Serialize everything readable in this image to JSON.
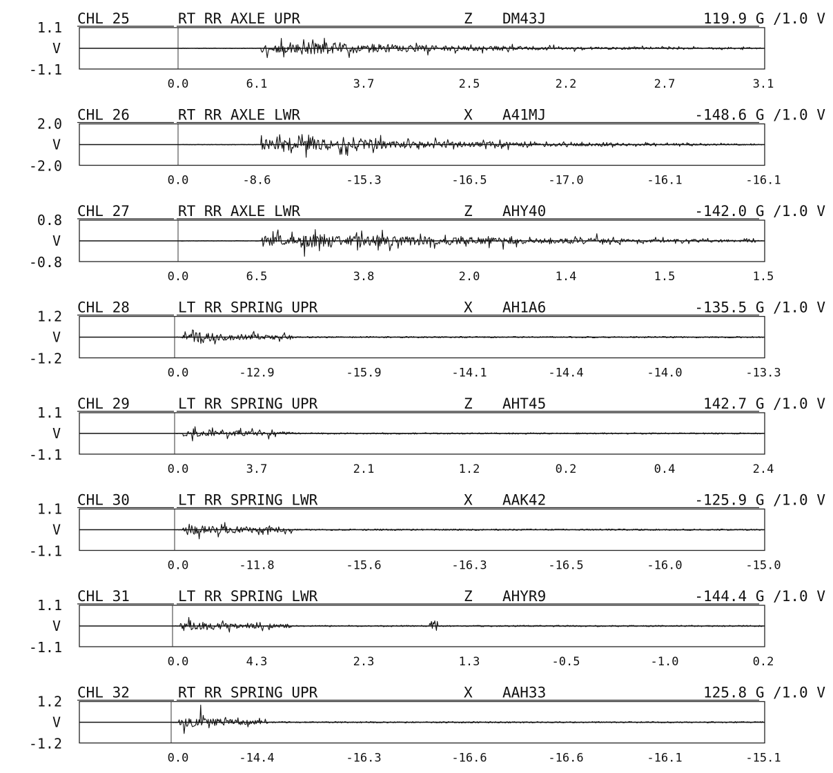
{
  "chart_data": [
    {
      "type": "line",
      "channel": "CHL 25",
      "location": "RT RR AXLE UPR",
      "axis": "Z",
      "sensor_id": "DM43J",
      "scale": "119.9 G /1.0 V",
      "y_top": "1.1",
      "y_unit": "V",
      "y_bottom": "-1.1",
      "tick_labels": [
        "0.0",
        "6.1",
        "3.7",
        "2.5",
        "2.2",
        "2.7",
        "3.1"
      ],
      "ylim": [
        -1.1,
        1.1
      ],
      "start": 0.14,
      "end": 0.99,
      "peak": 0.9,
      "decay": 3,
      "hf": 0.99,
      "seed": 11,
      "blips": [
        [
          0.56,
          0.15
        ]
      ]
    },
    {
      "type": "line",
      "channel": "CHL 26",
      "location": "RT RR AXLE LWR",
      "axis": "X",
      "sensor_id": "A41MJ",
      "scale": "-148.6 G /1.0 V",
      "y_top": "2.0",
      "y_unit": "V",
      "y_bottom": "-2.0",
      "tick_labels": [
        "0.0",
        "-8.6",
        "-15.3",
        "-16.5",
        "-17.0",
        "-16.1",
        "-16.1"
      ],
      "ylim": [
        -2.0,
        2.0
      ],
      "start": 0.14,
      "end": 0.99,
      "peak": 0.9,
      "decay": 3,
      "hf": 0.99,
      "seed": 23,
      "blips": [
        [
          0.56,
          0.1
        ]
      ]
    },
    {
      "type": "line",
      "channel": "CHL 27",
      "location": "RT RR AXLE LWR",
      "axis": "Z",
      "sensor_id": "AHY40",
      "scale": "-142.0 G /1.0 V",
      "y_top": "0.8",
      "y_unit": "V",
      "y_bottom": "-0.8",
      "tick_labels": [
        "0.0",
        "6.5",
        "3.8",
        "2.0",
        "1.4",
        "1.5",
        "1.5"
      ],
      "ylim": [
        -0.8,
        0.8
      ],
      "start": 0.14,
      "end": 0.99,
      "peak": 0.95,
      "decay": 2.2,
      "hf": 0.99,
      "seed": 37,
      "blips": [
        [
          0.56,
          0.15
        ]
      ]
    },
    {
      "type": "line",
      "channel": "CHL 28",
      "location": "LT RR SPRING UPR",
      "axis": "X",
      "sensor_id": "AH1A6",
      "scale": "-135.5 G /1.0 V",
      "y_top": "1.2",
      "y_unit": "V",
      "y_bottom": "-1.2",
      "tick_labels": [
        "0.0",
        "-12.9",
        "-15.9",
        "-14.1",
        "-14.4",
        "-14.0",
        "-13.3"
      ],
      "ylim": [
        -1.2,
        1.2
      ],
      "start": 0.01,
      "end": 0.2,
      "peak": 0.95,
      "decay": 1.1,
      "hf": 0.6,
      "seed": 41,
      "blips": []
    },
    {
      "type": "line",
      "channel": "CHL 29",
      "location": "LT RR SPRING UPR",
      "axis": "Z",
      "sensor_id": "AHT45",
      "scale": "142.7 G /1.0 V",
      "y_top": "1.1",
      "y_unit": "V",
      "y_bottom": "-1.1",
      "tick_labels": [
        "0.0",
        "3.7",
        "2.1",
        "1.2",
        "0.2",
        "0.4",
        "2.4"
      ],
      "ylim": [
        -1.1,
        1.1
      ],
      "start": 0.01,
      "end": 0.2,
      "peak": 1.0,
      "decay": 1.2,
      "hf": 0.5,
      "seed": 53,
      "blips": []
    },
    {
      "type": "line",
      "channel": "CHL 30",
      "location": "LT RR SPRING LWR",
      "axis": "X",
      "sensor_id": "AAK42",
      "scale": "-125.9 G /1.0 V",
      "y_top": "1.1",
      "y_unit": "V",
      "y_bottom": "-1.1",
      "tick_labels": [
        "0.0",
        "-11.8",
        "-15.6",
        "-16.3",
        "-16.5",
        "-16.0",
        "-15.0"
      ],
      "ylim": [
        -1.1,
        1.1
      ],
      "start": 0.01,
      "end": 0.2,
      "peak": 0.95,
      "decay": 1.0,
      "hf": 0.6,
      "seed": 67,
      "blips": []
    },
    {
      "type": "line",
      "channel": "CHL 31",
      "location": "LT RR SPRING LWR",
      "axis": "Z",
      "sensor_id": "AHYR9",
      "scale": "-144.4 G /1.0 V",
      "y_top": "1.1",
      "y_unit": "V",
      "y_bottom": "-1.1",
      "tick_labels": [
        "0.0",
        "4.3",
        "2.3",
        "1.3",
        "-0.5",
        "-1.0",
        "0.2"
      ],
      "ylim": [
        -1.1,
        1.1
      ],
      "start": 0.01,
      "end": 0.2,
      "peak": 1.0,
      "decay": 1.0,
      "hf": 0.5,
      "seed": 79,
      "blips": [
        [
          0.44,
          0.3
        ]
      ]
    },
    {
      "type": "line",
      "channel": "CHL 32",
      "location": "RT RR SPRING UPR",
      "axis": "X",
      "sensor_id": "AAH33",
      "scale": "125.8 G /1.0 V",
      "y_top": "1.2",
      "y_unit": "V",
      "y_bottom": "-1.2",
      "tick_labels": [
        "0.0",
        "-14.4",
        "-16.3",
        "-16.6",
        "-16.6",
        "-16.1",
        "-15.1"
      ],
      "ylim": [
        -1.2,
        1.2
      ],
      "start": 0.01,
      "end": 0.16,
      "peak": 0.9,
      "decay": 1.3,
      "hf": 0.7,
      "seed": 97,
      "blips": []
    }
  ]
}
